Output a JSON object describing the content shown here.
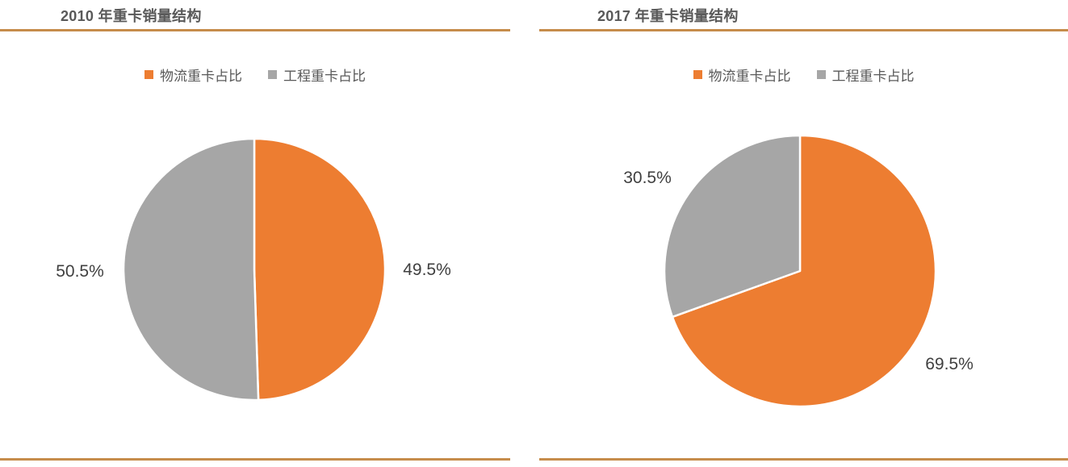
{
  "page": {
    "background": "#ffffff",
    "rule_color": "#C68C4B",
    "title_color": "#595959",
    "label_color": "#404040"
  },
  "chart_data": [
    {
      "type": "pie",
      "title": "2010 年重卡销量结构",
      "categories": [
        "物流重卡占比",
        "工程重卡占比"
      ],
      "values": [
        49.5,
        50.5
      ],
      "data_labels": [
        "49.5%",
        "50.5%"
      ],
      "colors": [
        "#ED7D31",
        "#A6A6A6"
      ],
      "start_angle_deg": 0,
      "direction": "clockwise",
      "legend_position": "top",
      "legend": [
        {
          "label": "物流重卡占比",
          "color": "#ED7D31"
        },
        {
          "label": "工程重卡占比",
          "color": "#A6A6A6"
        }
      ]
    },
    {
      "type": "pie",
      "title": "2017 年重卡销量结构",
      "categories": [
        "物流重卡占比",
        "工程重卡占比"
      ],
      "values": [
        69.5,
        30.5
      ],
      "data_labels": [
        "69.5%",
        "30.5%"
      ],
      "colors": [
        "#ED7D31",
        "#A6A6A6"
      ],
      "start_angle_deg": 0,
      "direction": "clockwise",
      "legend_position": "top",
      "legend": [
        {
          "label": "物流重卡占比",
          "color": "#ED7D31"
        },
        {
          "label": "工程重卡占比",
          "color": "#A6A6A6"
        }
      ]
    }
  ]
}
